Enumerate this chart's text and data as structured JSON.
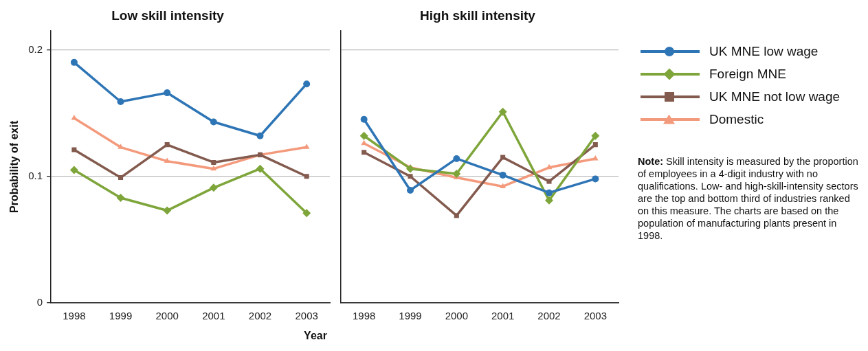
{
  "chart_data": [
    {
      "type": "line",
      "title": "Low skill intensity",
      "xlabel": "Year",
      "ylabel": "Probability of exit",
      "categories": [
        "1998",
        "1999",
        "2000",
        "2001",
        "2002",
        "2003"
      ],
      "ylim": [
        0,
        0.215
      ],
      "yticks": [
        0,
        0.1,
        0.2
      ],
      "grid": "y",
      "legend": false,
      "series": [
        {
          "color": "#2e75b6",
          "marker": "circle",
          "values": [
            0.19,
            0.159,
            0.166,
            0.143,
            0.132,
            0.173
          ]
        },
        {
          "color": "#7ea53a",
          "marker": "diamond",
          "values": [
            0.105,
            0.083,
            0.073,
            0.091,
            0.106,
            0.071
          ]
        },
        {
          "color": "#835a4e",
          "marker": "square",
          "values": [
            0.121,
            0.099,
            0.125,
            0.111,
            0.117,
            0.1
          ]
        },
        {
          "color": "#f49a7c",
          "marker": "triangle",
          "values": [
            0.146,
            0.123,
            0.112,
            0.106,
            0.117,
            0.123
          ]
        }
      ]
    },
    {
      "type": "line",
      "title": "High skill intensity",
      "categories": [
        "1998",
        "1999",
        "2000",
        "2001",
        "2002",
        "2003"
      ],
      "ylim": [
        0,
        0.215
      ],
      "tick_labels": "x",
      "grid": "y",
      "legend": "right",
      "annotations": [
        "Note: Skill intensity is measured by the proportion of employees in a 4-digit industry with no qualifications. Low- and high-skill-intensity sectors are the top and bottom third of industries ranked on this measure. The charts are based on the population of manufacturing plants present in 1998."
      ],
      "series": [
        {
          "name": "UK MNE low wage",
          "color": "#2e75b6",
          "marker": "circle",
          "values": [
            0.145,
            0.089,
            0.114,
            0.101,
            0.087,
            0.098
          ]
        },
        {
          "name": "Foreign MNE",
          "color": "#7ea53a",
          "marker": "diamond",
          "values": [
            0.132,
            0.106,
            0.102,
            0.151,
            0.081,
            0.132
          ]
        },
        {
          "name": "UK MNE not low wage",
          "color": "#835a4e",
          "marker": "square",
          "values": [
            0.119,
            0.1,
            0.069,
            0.115,
            0.096,
            0.125
          ]
        },
        {
          "name": "Domestic",
          "color": "#f49a7c",
          "marker": "triangle",
          "values": [
            0.126,
            0.107,
            0.099,
            0.092,
            0.107,
            0.114
          ]
        }
      ]
    }
  ]
}
